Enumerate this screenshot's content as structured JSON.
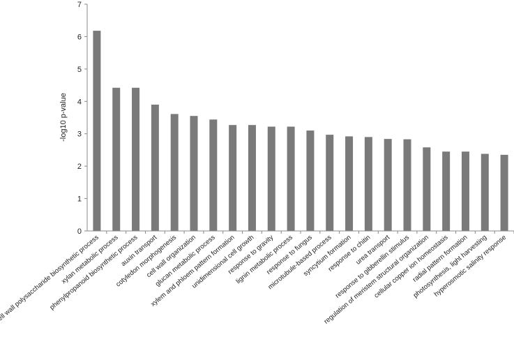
{
  "chart_data": {
    "type": "bar",
    "title": "",
    "xlabel": "",
    "ylabel": "-log10 p-value",
    "ylim": [
      0,
      7
    ],
    "yticks": [
      "0",
      "1",
      "2",
      "3",
      "4",
      "5",
      "6",
      "7"
    ],
    "grid": false,
    "legend": "none",
    "bar_color": "#7a7a7a",
    "categories": [
      "cell wall polysaccharide biosynthetic process",
      "xylan metabolic process",
      "phenylpropanoid biosynthetic process",
      "auxin transport",
      "cotyledon morphogenesis",
      "cell wall organization",
      "glucan metabolic process",
      "xylem and phloem pattern formation",
      "unidimensional cell growth",
      "response to gravity",
      "lignin metabolic process",
      "response to fungus",
      "microtubule-based process",
      "syncytium formation",
      "response to chitin",
      "urea transport",
      "response to gibberellin stimulus",
      "regulation of meristem structural organization",
      "cellular copper ion homeostasis",
      "radial pattern formation",
      "photosynthesis, light harvesting",
      "hyperosmotic salinity response"
    ],
    "values": [
      6.18,
      4.42,
      4.42,
      3.9,
      3.61,
      3.55,
      3.44,
      3.27,
      3.27,
      3.22,
      3.22,
      3.1,
      2.97,
      2.92,
      2.9,
      2.84,
      2.83,
      2.58,
      2.45,
      2.45,
      2.38,
      2.35
    ]
  }
}
